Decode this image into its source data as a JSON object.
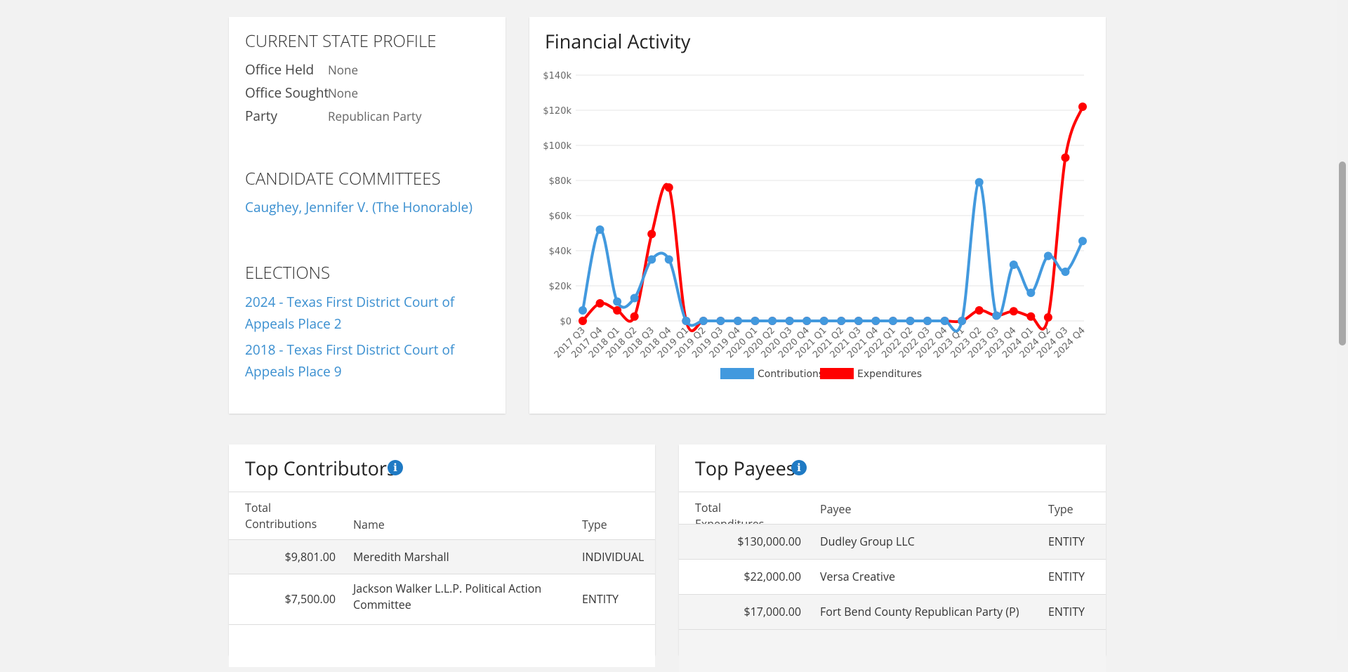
{
  "profile": {
    "title": "CURRENT STATE PROFILE",
    "rows": [
      {
        "label": "Office Held",
        "value": "None"
      },
      {
        "label": "Office Sought",
        "value": "None"
      },
      {
        "label": "Party",
        "value": "Republican Party"
      }
    ]
  },
  "committees": {
    "title": "CANDIDATE COMMITTEES",
    "items": [
      "Caughey, Jennifer V. (The Honorable)"
    ]
  },
  "elections": {
    "title": "ELECTIONS",
    "items": [
      "2024 - Texas First District Court of Appeals Place 2",
      "2018 - Texas First District Court of Appeals Place 9"
    ]
  },
  "chart_data": {
    "type": "line",
    "title": "Financial Activity",
    "categories": [
      "2017 Q3",
      "2017 Q4",
      "2018 Q1",
      "2018 Q2",
      "2018 Q3",
      "2018 Q4",
      "2019 Q1",
      "2019 Q2",
      "2019 Q3",
      "2019 Q4",
      "2020 Q1",
      "2020 Q2",
      "2020 Q3",
      "2020 Q4",
      "2021 Q1",
      "2021 Q2",
      "2021 Q3",
      "2021 Q4",
      "2022 Q1",
      "2022 Q2",
      "2022 Q3",
      "2022 Q4",
      "2023 Q1",
      "2023 Q2",
      "2023 Q3",
      "2023 Q4",
      "2024 Q1",
      "2024 Q2",
      "2024 Q3",
      "2024 Q4"
    ],
    "series": [
      {
        "name": "Contributions",
        "color": "#4299de",
        "values": [
          6000,
          52000,
          11000,
          13000,
          35000,
          35000,
          0,
          0,
          0,
          0,
          0,
          0,
          0,
          0,
          0,
          0,
          0,
          0,
          0,
          0,
          0,
          0,
          0,
          79000,
          3000,
          32000,
          16000,
          37000,
          28000,
          45500
        ]
      },
      {
        "name": "Expenditures",
        "color": "#ff0000",
        "values": [
          0,
          10000,
          6000,
          2500,
          49500,
          76000,
          0,
          0,
          0,
          0,
          0,
          0,
          0,
          0,
          0,
          0,
          0,
          0,
          0,
          0,
          0,
          0,
          0,
          6000,
          3000,
          5500,
          2500,
          2000,
          93000,
          122000
        ]
      }
    ],
    "ylim": [
      0,
      140000
    ],
    "yticks": [
      {
        "value": 0,
        "label": "$0"
      },
      {
        "value": 20000,
        "label": "$20k"
      },
      {
        "value": 40000,
        "label": "$40k"
      },
      {
        "value": 60000,
        "label": "$60k"
      },
      {
        "value": 80000,
        "label": "$80k"
      },
      {
        "value": 100000,
        "label": "$100k"
      },
      {
        "value": 120000,
        "label": "$120k"
      },
      {
        "value": 140000,
        "label": "$140k"
      }
    ],
    "grid": true,
    "legend": "bottom"
  },
  "contributors": {
    "title": "Top Contributors",
    "columns": [
      "Total Contributions",
      "Name",
      "Type"
    ],
    "rows": [
      [
        "$9,801.00",
        "Meredith Marshall",
        "INDIVIDUAL"
      ],
      [
        "$7,500.00",
        "Jackson Walker L.L.P. Political Action Committee",
        "ENTITY"
      ]
    ]
  },
  "payees": {
    "title": "Top Payees",
    "columns": [
      "Total Expenditures",
      "Payee",
      "Type"
    ],
    "rows": [
      [
        "$130,000.00",
        "Dudley Group LLC",
        "ENTITY"
      ],
      [
        "$22,000.00",
        "Versa Creative",
        "ENTITY"
      ],
      [
        "$17,000.00",
        "Fort Bend County Republican Party (P)",
        "ENTITY"
      ]
    ]
  }
}
